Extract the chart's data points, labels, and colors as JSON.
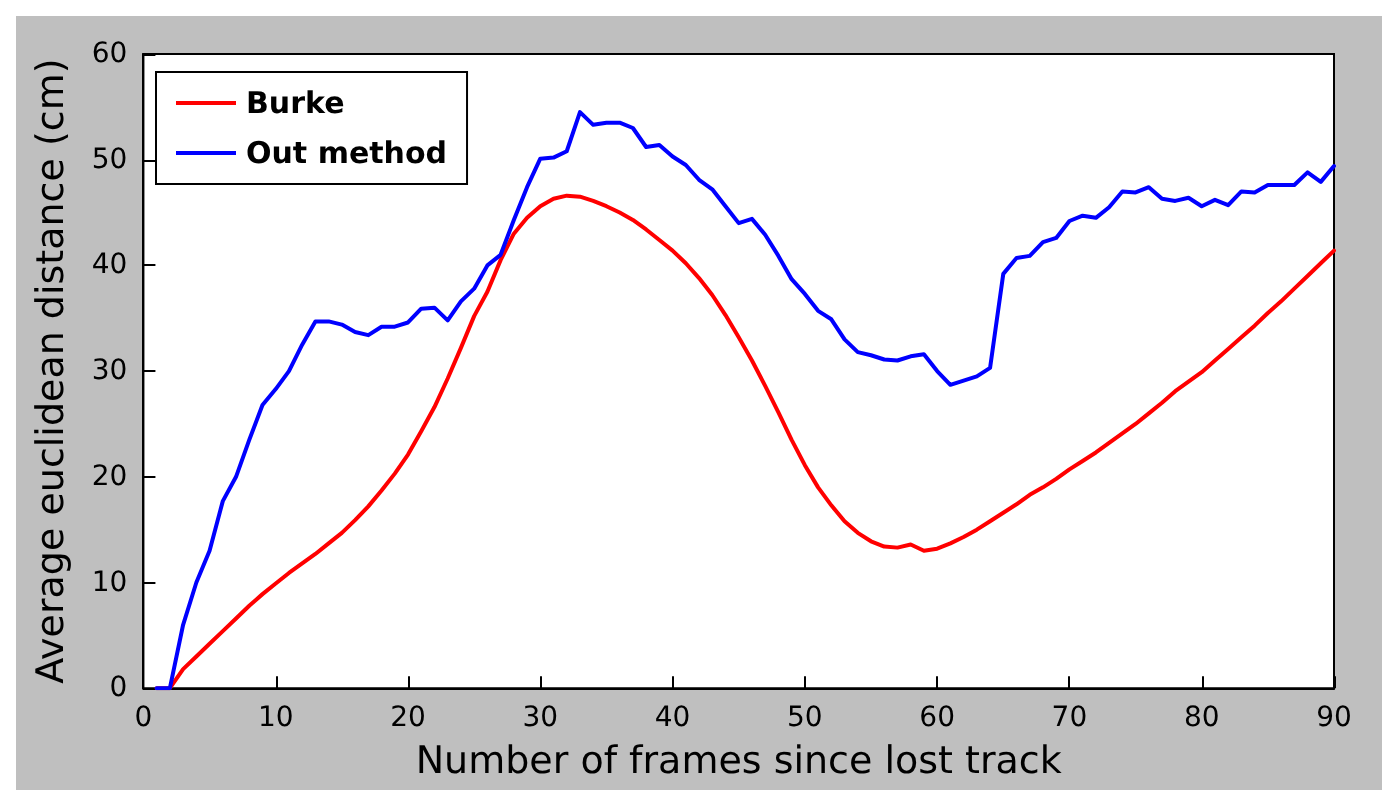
{
  "chart_data": {
    "type": "line",
    "xlabel": "Number of frames since lost track",
    "ylabel": "Average euclidean distance (cm)",
    "xlim": [
      0,
      90
    ],
    "ylim": [
      0,
      60
    ],
    "xticks": [
      0,
      10,
      20,
      30,
      40,
      50,
      60,
      70,
      80,
      90
    ],
    "yticks": [
      0,
      10,
      20,
      30,
      40,
      50,
      60
    ],
    "grid": false,
    "legend": "top left",
    "marker": "none",
    "line_style": "solid",
    "x": [
      1,
      2,
      3,
      4,
      5,
      6,
      7,
      8,
      9,
      10,
      11,
      12,
      13,
      14,
      15,
      16,
      17,
      18,
      19,
      20,
      21,
      22,
      23,
      24,
      25,
      26,
      27,
      28,
      29,
      30,
      31,
      32,
      33,
      34,
      35,
      36,
      37,
      38,
      39,
      40,
      41,
      42,
      43,
      44,
      45,
      46,
      47,
      48,
      49,
      50,
      51,
      52,
      53,
      54,
      55,
      56,
      57,
      58,
      59,
      60,
      61,
      62,
      63,
      64,
      65,
      66,
      67,
      68,
      69,
      70,
      71,
      72,
      73,
      74,
      75,
      76,
      77,
      78,
      79,
      80,
      81,
      82,
      83,
      84,
      85,
      86,
      87,
      88,
      89,
      90
    ],
    "series": [
      {
        "name": "Burke",
        "color": "#ff0000",
        "values": [
          0,
          0,
          1.8,
          3,
          4.2,
          5.4,
          6.6,
          7.8,
          8.9,
          9.9,
          10.9,
          11.8,
          12.7,
          13.7,
          14.7,
          15.9,
          17.2,
          18.7,
          20.3,
          22.1,
          24.3,
          26.6,
          29.3,
          32.2,
          35.2,
          37.5,
          40.5,
          43,
          44.5,
          45.6,
          46.3,
          46.6,
          46.5,
          46.1,
          45.6,
          45,
          44.3,
          43.4,
          42.4,
          41.4,
          40.2,
          38.8,
          37.2,
          35.3,
          33.2,
          31,
          28.6,
          26.1,
          23.5,
          21.1,
          19,
          17.3,
          15.8,
          14.7,
          13.9,
          13.4,
          13.3,
          13.6,
          13,
          13.2,
          13.7,
          14.3,
          15,
          15.8,
          16.6,
          17.4,
          18.3,
          19,
          19.8,
          20.7,
          21.5,
          22.3,
          23.2,
          24.1,
          25,
          26,
          27,
          28.1,
          29,
          29.9,
          31,
          32.1,
          33.2,
          34.3,
          35.5,
          36.6,
          37.8,
          39,
          40.2,
          41.4
        ]
      },
      {
        "name": "Out method",
        "color": "#0000ff",
        "values": [
          0,
          0,
          6,
          10,
          13,
          17.7,
          20,
          23.5,
          26.8,
          28.3,
          30,
          32.5,
          34.7,
          34.7,
          34.4,
          33.7,
          33.4,
          34.2,
          34.2,
          34.6,
          35.9,
          36,
          34.8,
          36.6,
          37.8,
          40,
          41,
          44.3,
          47.4,
          50.1,
          50.2,
          50.8,
          54.5,
          53.3,
          53.5,
          53.5,
          53,
          51.2,
          51.4,
          50.3,
          49.5,
          48.1,
          47.2,
          45.6,
          44,
          44.4,
          42.9,
          40.9,
          38.7,
          37.3,
          35.7,
          34.9,
          33,
          31.8,
          31.5,
          31.1,
          31,
          31.4,
          31.6,
          30,
          28.7,
          29.1,
          29.5,
          30.3,
          39.2,
          40.7,
          40.9,
          42.2,
          42.6,
          44.2,
          44.7,
          44.5,
          45.5,
          47,
          46.9,
          47.4,
          46.3,
          46.1,
          46.4,
          45.6,
          46.2,
          45.7,
          47,
          46.9,
          47.6,
          47.6,
          47.6,
          48.8,
          47.9,
          49.4
        ]
      }
    ]
  }
}
